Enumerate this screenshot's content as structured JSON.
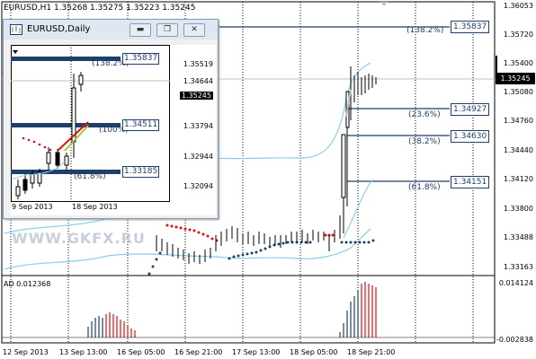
{
  "main_chart": {
    "title": "EURUSD,H1  1.35268 1.35275 1.35223 1.35245",
    "current_price": "1.35245",
    "price_labels": [
      "1.36053",
      "1.35720",
      "1.35400",
      "1.35080",
      "1.34760",
      "1.34440",
      "1.34120",
      "1.33800",
      "1.33488",
      "1.33163"
    ],
    "fibo": [
      {
        "price": "1.35837",
        "pct": "(138.2%)"
      },
      {
        "price": "1.34927",
        "pct": "(23.6%)"
      },
      {
        "price": "1.34630",
        "pct": "(38.2%)"
      },
      {
        "price": "1.34151",
        "pct": "(61.8%)"
      }
    ],
    "date_labels": [
      "12 Sep 2013",
      "13 Sep 13:00",
      "16 Sep 05:00",
      "16 Sep 21:00",
      "17 Sep 13:00",
      "18 Sep 05:00",
      "18 Sep 21:00"
    ],
    "watermark": "WWW.GKFX.RU"
  },
  "ad_indicator": {
    "label": "AD 0.012368",
    "scale_top": "0.014124",
    "scale_bottom": "-0.002838"
  },
  "inset_window": {
    "title": "EURUSD,Daily",
    "price_labels": [
      "1.35519",
      "1.34644",
      "1.33794",
      "1.32944",
      "1.32094"
    ],
    "current_price": "1.35245",
    "fibo": [
      {
        "price": "1.35837",
        "pct": "(138.2%)"
      },
      {
        "price": "1.34511",
        "pct": "(100%)"
      },
      {
        "price": "1.33185",
        "pct": "(61.8%)"
      }
    ],
    "date_labels": [
      "9 Sep 2013",
      "18 Sep 2013"
    ],
    "buttons": {
      "minimize": "▬",
      "restore": "❐",
      "close": "✕"
    }
  },
  "colors": {
    "fibo": "#1f3f6a",
    "sar_red": "#e01010",
    "sar_blue": "#1f3f6a",
    "band": "#87ceeb",
    "ad_red": "#e01010",
    "ad_blue": "#1f3f6a"
  }
}
